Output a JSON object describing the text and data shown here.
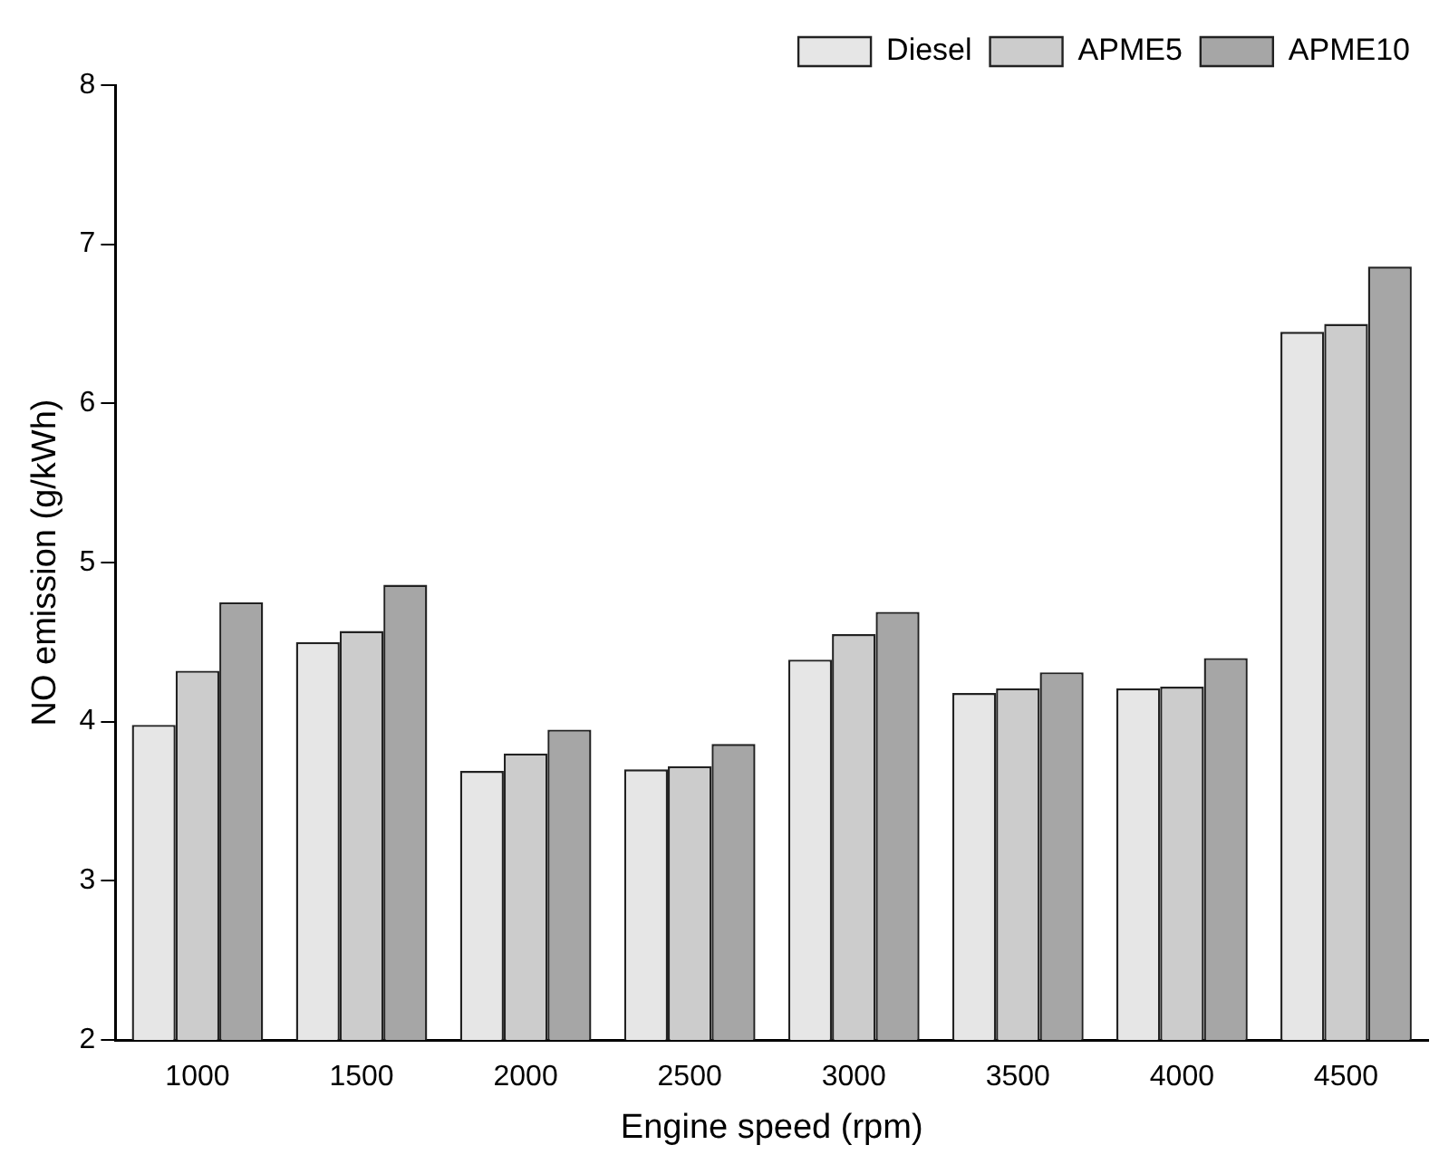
{
  "chart_data": {
    "type": "bar",
    "xlabel": "Engine speed (rpm)",
    "ylabel": "NO emission (g/kWh)",
    "categories": [
      "1000",
      "1500",
      "2000",
      "2500",
      "3000",
      "3500",
      "4000",
      "4500"
    ],
    "series": [
      {
        "name": "Diesel",
        "color": "#e6e6e6",
        "values": [
          3.98,
          4.5,
          3.69,
          3.7,
          4.39,
          4.18,
          4.21,
          6.45
        ]
      },
      {
        "name": "APME5",
        "color": "#cccccc",
        "values": [
          4.32,
          4.57,
          3.8,
          3.72,
          4.55,
          4.21,
          4.22,
          6.5
        ]
      },
      {
        "name": "APME10",
        "color": "#a6a6a6",
        "values": [
          4.75,
          4.86,
          3.95,
          3.86,
          4.69,
          4.31,
          4.4,
          6.86
        ]
      }
    ],
    "ylim": [
      2,
      8
    ],
    "yticks": [
      2,
      3,
      4,
      5,
      6,
      7,
      8
    ],
    "grid": false,
    "legend": "top right"
  }
}
